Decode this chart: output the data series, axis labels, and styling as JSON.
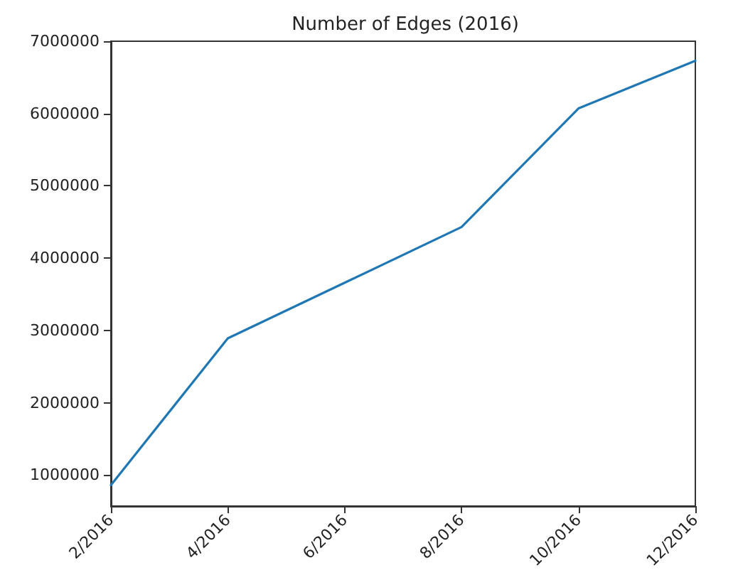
{
  "chart_data": {
    "type": "line",
    "title": "Number of Edges (2016)",
    "categories": [
      "2/2016",
      "4/2016",
      "6/2016",
      "8/2016",
      "10/2016",
      "12/2016"
    ],
    "series": [
      {
        "color": "#1f77b4",
        "values": [
          860000,
          2890000,
          3660000,
          4430000,
          6070000,
          6730000
        ]
      }
    ],
    "ylim": [
      570000,
      7000000
    ],
    "yticks": [
      1000000,
      2000000,
      3000000,
      4000000,
      5000000,
      6000000,
      7000000
    ],
    "grid": false,
    "marker": "none",
    "line_style": "solid"
  }
}
